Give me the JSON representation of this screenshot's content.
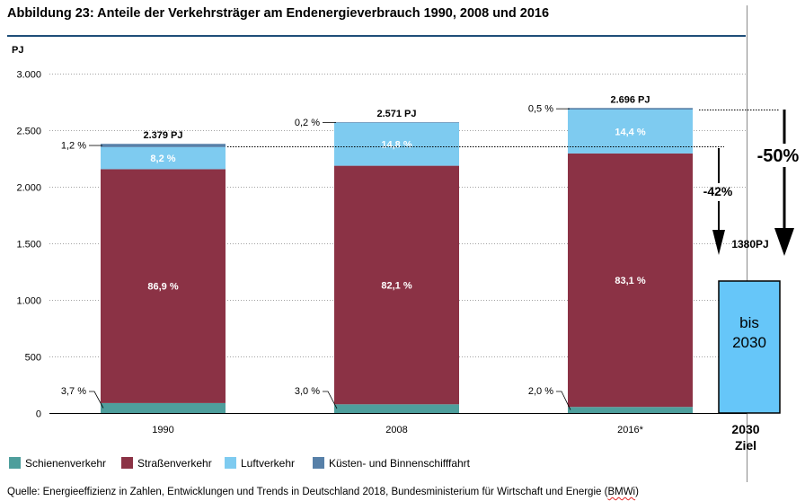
{
  "chart_data": {
    "type": "bar",
    "stacked": true,
    "title": "Abbildung 23: Anteile der Verkehrsträger am Endenergieverbrauch 1990, 2008 und 2016",
    "xlabel": "",
    "ylabel": "PJ",
    "ylim": [
      0,
      3000
    ],
    "yticks": [
      0,
      500,
      1000,
      1500,
      2000,
      2500,
      3000
    ],
    "ytick_labels": [
      "0",
      "500",
      "1.000",
      "1.500",
      "2.000",
      "2.500",
      "3.000"
    ],
    "grid": true,
    "legend": "bottom",
    "categories": [
      "1990",
      "2008",
      "2016*"
    ],
    "totals": [
      2379,
      2571,
      2696
    ],
    "total_labels": [
      "2.379 PJ",
      "2.571 PJ",
      "2.696 PJ"
    ],
    "series": [
      {
        "name": "Schienenverkehr",
        "color": "#4e9e9c",
        "shares": [
          3.7,
          3.0,
          2.0
        ],
        "labels": [
          "3,7 %",
          "3,0 %",
          "2,0 %"
        ]
      },
      {
        "name": "Straßenverkehr",
        "color": "#8b3245",
        "shares": [
          86.9,
          82.1,
          83.1
        ],
        "labels": [
          "86,9 %",
          "82,1 %",
          "83,1 %"
        ]
      },
      {
        "name": "Luftverkehr",
        "color": "#7ecbf0",
        "shares": [
          8.2,
          14.8,
          14.4
        ],
        "labels": [
          "8,2 %",
          "14,8 %",
          "14,4 %"
        ]
      },
      {
        "name": "Küsten- und Binnenschifffahrt",
        "color": "#5780a8",
        "shares": [
          1.2,
          0.2,
          0.5
        ],
        "labels": [
          "1,2 %",
          "0,2 %",
          "0,5 %"
        ]
      }
    ],
    "target": {
      "value": 1380,
      "value_label": "1380PJ",
      "box_text": [
        "bis",
        "2030"
      ],
      "category": [
        "2030",
        "Ziel"
      ],
      "color": "#66c6f9",
      "reductions": [
        "-42%",
        "-50%"
      ]
    }
  },
  "colors": {
    "title_rule": "#1f4e79"
  },
  "source": {
    "text": "Quelle: Energieeffizienz in Zahlen, Entwicklungen und Trends in Deutschland 2018, Bundesministerium für Wirtschaft und Energie (",
    "abbr": "BMWi",
    "close": ")"
  }
}
